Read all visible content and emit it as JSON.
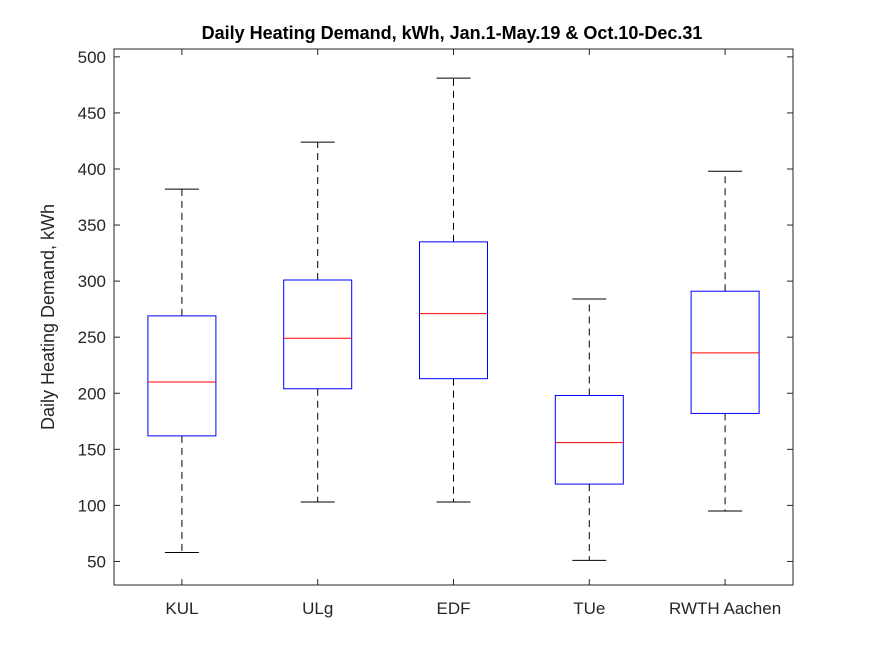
{
  "chart_data": {
    "type": "box",
    "title": "Daily Heating Demand, kWh, Jan.1-May.19 & Oct.10-Dec.31",
    "xlabel": "",
    "ylabel": "Daily Heating Demand, kWh",
    "ylim": [
      29,
      507
    ],
    "yticks": [
      50,
      100,
      150,
      200,
      250,
      300,
      350,
      400,
      450,
      500
    ],
    "categories": [
      "KUL",
      "ULg",
      "EDF",
      "TUe",
      "RWTH Aachen"
    ],
    "boxes": [
      {
        "label": "KUL",
        "min": 58,
        "q1": 162,
        "median": 210,
        "q3": 269,
        "max": 382
      },
      {
        "label": "ULg",
        "min": 103,
        "q1": 204,
        "median": 249,
        "q3": 301,
        "max": 424
      },
      {
        "label": "EDF",
        "min": 103,
        "q1": 213,
        "median": 271,
        "q3": 335,
        "max": 481
      },
      {
        "label": "TUe",
        "min": 51,
        "q1": 119,
        "median": 156,
        "q3": 198,
        "max": 284
      },
      {
        "label": "RWTH Aachen",
        "min": 95,
        "q1": 182,
        "median": 236,
        "q3": 291,
        "max": 398
      }
    ],
    "colors": {
      "box": "#0000ff",
      "median": "#ff0000",
      "whisker": "#000000"
    },
    "grid": false
  }
}
